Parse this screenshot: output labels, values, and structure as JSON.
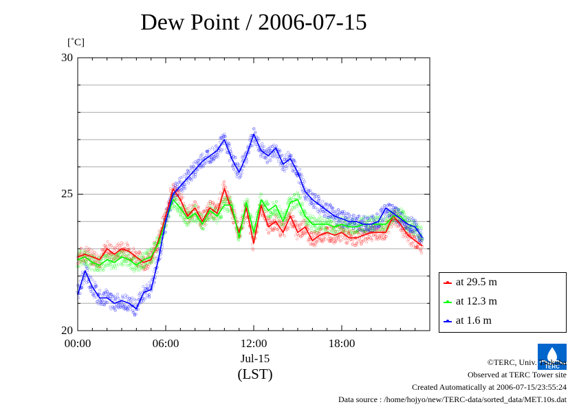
{
  "chart_data": {
    "type": "line",
    "title": "Dew Point / 2006-07-15",
    "ylabel": "[˚C]",
    "xlabel": "(LST)",
    "x_date_label": "Jul-15",
    "ylim": [
      20,
      30
    ],
    "xlim": [
      0,
      24
    ],
    "y_ticks": [
      "20",
      "25",
      "30"
    ],
    "x_ticks": [
      "00:00",
      "06:00",
      "12:00",
      "18:00"
    ],
    "grid": true,
    "legend_position": "bottom-right",
    "series": [
      {
        "name": "at 29.5 m",
        "color": "#ff0000",
        "x": [
          0,
          0.5,
          1,
          1.5,
          2,
          2.5,
          3,
          3.5,
          4,
          4.5,
          5,
          5.5,
          6,
          6.5,
          7,
          7.5,
          8,
          8.5,
          9,
          9.5,
          10,
          10.5,
          11,
          11.5,
          12,
          12.5,
          13,
          13.5,
          14,
          14.5,
          15,
          15.5,
          16,
          16.5,
          17,
          17.5,
          18,
          18.5,
          19,
          19.5,
          20,
          20.5,
          21,
          21.5,
          22,
          22.5,
          23,
          23.5
        ],
        "y": [
          22.7,
          22.8,
          22.7,
          22.6,
          23.0,
          22.8,
          23.0,
          22.9,
          22.7,
          22.5,
          22.6,
          23.3,
          24.2,
          25.2,
          24.8,
          24.2,
          24.5,
          24.0,
          24.5,
          24.3,
          25.2,
          24.4,
          23.6,
          24.5,
          23.2,
          24.6,
          23.8,
          24.0,
          23.6,
          24.2,
          23.6,
          23.8,
          23.3,
          23.5,
          23.6,
          23.5,
          23.6,
          23.4,
          23.4,
          23.5,
          23.6,
          23.6,
          23.6,
          24.2,
          23.9,
          23.5,
          23.3,
          23.1
        ]
      },
      {
        "name": "at 12.3 m",
        "color": "#00ff00",
        "x": [
          0,
          0.5,
          1,
          1.5,
          2,
          2.5,
          3,
          3.5,
          4,
          4.5,
          5,
          5.5,
          6,
          6.5,
          7,
          7.5,
          8,
          8.5,
          9,
          9.5,
          10,
          10.5,
          11,
          11.5,
          12,
          12.5,
          13,
          13.5,
          14,
          14.5,
          15,
          15.5,
          16,
          16.5,
          17,
          17.5,
          18,
          18.5,
          19,
          19.5,
          20,
          20.5,
          21,
          21.5,
          22,
          22.5,
          23,
          23.5
        ],
        "y": [
          22.6,
          22.7,
          22.5,
          22.4,
          22.6,
          22.5,
          22.7,
          22.6,
          22.4,
          22.6,
          22.7,
          23.2,
          24.0,
          24.8,
          24.5,
          24.1,
          24.3,
          23.9,
          24.4,
          24.2,
          24.6,
          24.6,
          23.4,
          24.7,
          23.6,
          24.8,
          24.4,
          24.6,
          24.0,
          24.7,
          24.8,
          24.2,
          23.9,
          23.9,
          23.9,
          23.8,
          23.9,
          23.8,
          23.8,
          23.9,
          23.9,
          23.9,
          23.9,
          24.2,
          24.2,
          23.9,
          23.8,
          23.4
        ]
      },
      {
        "name": "at 1.6 m",
        "color": "#0000ff",
        "x": [
          0,
          0.5,
          1,
          1.5,
          2,
          2.5,
          3,
          3.5,
          4,
          4.5,
          5,
          5.5,
          6,
          6.5,
          7,
          7.5,
          8,
          8.5,
          9,
          9.5,
          10,
          10.5,
          11,
          11.5,
          12,
          12.5,
          13,
          13.5,
          14,
          14.5,
          15,
          15.5,
          16,
          16.5,
          17,
          17.5,
          18,
          18.5,
          19,
          19.5,
          20,
          20.5,
          21,
          21.5,
          22,
          22.5,
          23,
          23.5
        ],
        "y": [
          21.3,
          22.2,
          21.6,
          21.2,
          21.2,
          21.0,
          21.1,
          21.0,
          20.8,
          21.4,
          21.5,
          22.6,
          24.0,
          25.0,
          25.3,
          25.6,
          25.9,
          26.2,
          26.4,
          26.6,
          27.0,
          26.3,
          25.8,
          26.4,
          27.2,
          26.6,
          26.4,
          26.7,
          26.1,
          26.3,
          25.8,
          25.1,
          24.8,
          24.6,
          24.4,
          24.2,
          24.1,
          24.0,
          24.0,
          23.9,
          23.9,
          24.0,
          24.5,
          24.3,
          24.1,
          23.9,
          23.8,
          23.4
        ]
      }
    ]
  },
  "credits": {
    "copyright": "©TERC, Univ. Tsukuba",
    "observed": "Observed at TERC Tower site",
    "created": "Created Automatically at 2006-07-15/23:55:24",
    "source": "Data source : /home/hojyo/new/TERC-data/sorted_data/MET.10s.dat"
  },
  "logo": {
    "text": "TERC",
    "color": "#0066cc"
  }
}
